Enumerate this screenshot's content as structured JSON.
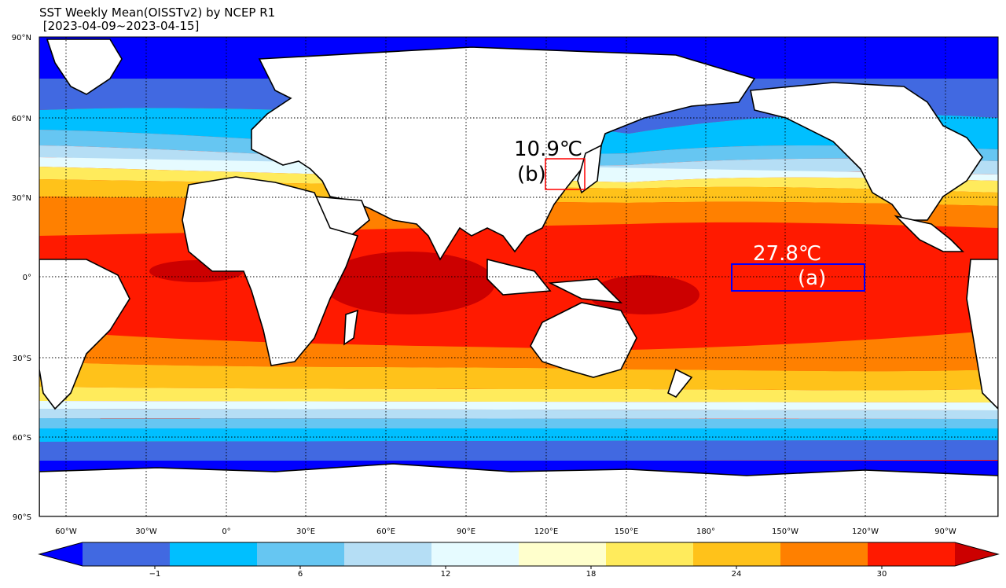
{
  "title": {
    "line1": "SST Weekly Mean(OISSTv2) by NCEP R1",
    "line2": " [2023-04-09~2023-04-15]"
  },
  "lat_labels": [
    "90°N",
    "60°N",
    "30°N",
    "0°",
    "30°S",
    "60°S",
    "90°S"
  ],
  "lon_labels": [
    "60°W",
    "30°W",
    "0°",
    "30°E",
    "60°E",
    "90°E",
    "120°E",
    "150°E",
    "180°",
    "150°W",
    "120°W",
    "90°W"
  ],
  "annotations": {
    "a_value": "27.8℃",
    "a_label": "(a)",
    "b_value": "10.9℃",
    "b_label": "(b)"
  },
  "colorbar": {
    "colors": [
      "#0000ff",
      "#4169e1",
      "#00bfff",
      "#66c6f2",
      "#b5def5",
      "#e6fbff",
      "#ffffcc",
      "#ffeb5c",
      "#ffc21a",
      "#ff8000",
      "#ff1a00",
      "#cc0000"
    ],
    "tick_labels": [
      "−1",
      "6",
      "12",
      "18",
      "24",
      "30"
    ]
  },
  "legend_colors": {
    "land": "#ffffff",
    "box_a": "#0000ff",
    "box_b": "#ff0000"
  }
}
